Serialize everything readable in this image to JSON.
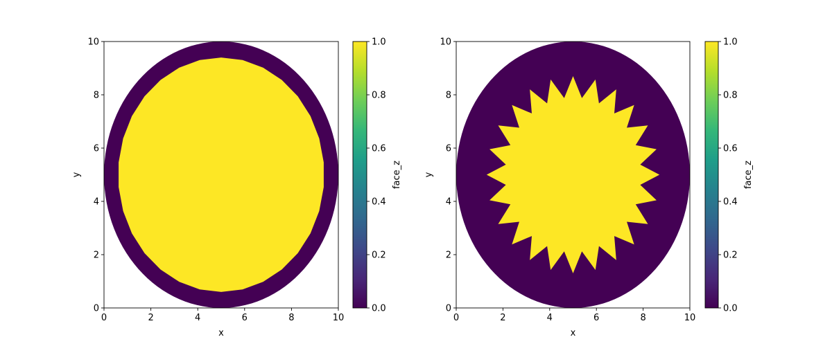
{
  "chart_data": [
    {
      "type": "heatmap",
      "title": "",
      "xlabel": "x",
      "ylabel": "y",
      "xlim": [
        0,
        10
      ],
      "ylim": [
        0,
        10
      ],
      "x_ticks": [
        0,
        2,
        4,
        6,
        8,
        10
      ],
      "y_ticks": [
        0,
        2,
        4,
        6,
        8,
        10
      ],
      "grid": false,
      "colormap": "viridis",
      "colorbar": {
        "label": "face_z",
        "range": [
          0.0,
          1.0
        ],
        "ticks": [
          "0.0",
          "0.2",
          "0.4",
          "0.6",
          "0.8",
          "1.0"
        ]
      },
      "regions": [
        {
          "name": "outer-ring",
          "value": 0.0,
          "shape": "ellipse",
          "center": [
            5,
            5
          ],
          "semi_axes": [
            5,
            5
          ]
        },
        {
          "name": "inner-disk",
          "value": 1.0,
          "shape": "faceted-ellipse",
          "center": [
            5,
            5
          ],
          "semi_axes": [
            4.4,
            4.4
          ],
          "facets": 30
        }
      ]
    },
    {
      "type": "heatmap",
      "title": "",
      "xlabel": "x",
      "ylabel": "y",
      "xlim": [
        0,
        10
      ],
      "ylim": [
        0,
        10
      ],
      "x_ticks": [
        0,
        2,
        4,
        6,
        8,
        10
      ],
      "y_ticks": [
        0,
        2,
        4,
        6,
        8,
        10
      ],
      "grid": false,
      "colormap": "viridis",
      "colorbar": {
        "label": "face_z",
        "range": [
          0.0,
          1.0
        ],
        "ticks": [
          "0.0",
          "0.2",
          "0.4",
          "0.6",
          "0.8",
          "1.0"
        ]
      },
      "regions": [
        {
          "name": "outer-ring",
          "value": 0.0,
          "shape": "ellipse",
          "center": [
            5,
            5
          ],
          "semi_axes": [
            5,
            5
          ]
        },
        {
          "name": "star",
          "value": 1.0,
          "shape": "star",
          "center": [
            5,
            5
          ],
          "points": 24,
          "outer_radius": 3.7,
          "inner_radius": 2.9
        }
      ]
    }
  ],
  "colors": {
    "low": "#440154",
    "high": "#fde725"
  }
}
